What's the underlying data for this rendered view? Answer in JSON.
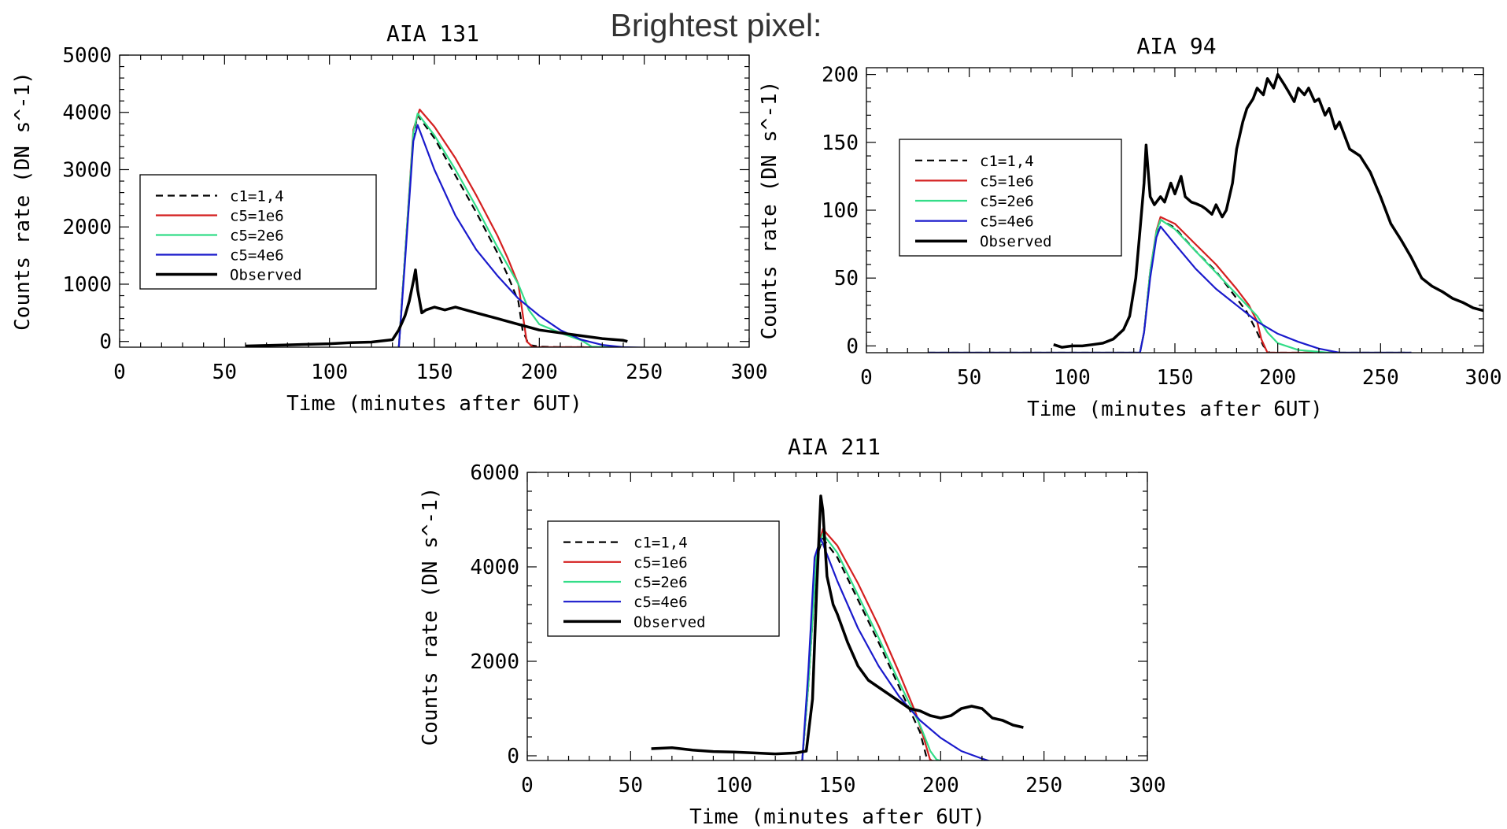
{
  "heading": "Brightest pixel:",
  "chart_data": [
    {
      "type": "line",
      "title": "AIA 131",
      "xlabel": "Time (minutes after 6UT)",
      "ylabel": "Counts rate (DN s^-1)",
      "xlim": [
        0,
        300
      ],
      "ylim": [
        -100,
        5000
      ],
      "xticks": [
        "0",
        "50",
        "100",
        "150",
        "200",
        "250",
        "300"
      ],
      "yticks": [
        "0",
        "1000",
        "2000",
        "3000",
        "4000",
        "5000"
      ],
      "legend": {
        "placement": "center-left"
      },
      "series": [
        {
          "name": "c1=1,4",
          "color": "#000000",
          "dash": true,
          "x": [
            30,
            133,
            136,
            140,
            142,
            150,
            160,
            170,
            180,
            185,
            190,
            192,
            195,
            200,
            210,
            220,
            230,
            240,
            265
          ],
          "y": [
            -120,
            -120,
            1500,
            3600,
            3950,
            3550,
            2900,
            2250,
            1550,
            1150,
            700,
            200,
            -60,
            -90,
            -100,
            -100,
            -100,
            -110,
            -120
          ]
        },
        {
          "name": "c5=1e6",
          "color": "#d42020",
          "dash": false,
          "x": [
            30,
            133,
            136,
            140,
            143,
            150,
            160,
            170,
            180,
            185,
            190,
            192,
            194,
            197,
            200,
            220,
            240,
            265
          ],
          "y": [
            -120,
            -120,
            1500,
            3700,
            4050,
            3750,
            3200,
            2550,
            1850,
            1450,
            1000,
            500,
            0,
            -100,
            -100,
            -100,
            -110,
            -120
          ]
        },
        {
          "name": "c5=2e6",
          "color": "#33dd88",
          "dash": false,
          "x": [
            30,
            133,
            136,
            140,
            142,
            150,
            160,
            170,
            180,
            190,
            195,
            200,
            210,
            220,
            225,
            240,
            265
          ],
          "y": [
            -120,
            -120,
            1500,
            3650,
            3980,
            3600,
            3000,
            2350,
            1650,
            1000,
            550,
            300,
            150,
            20,
            -90,
            -110,
            -120
          ]
        },
        {
          "name": "c5=4e6",
          "color": "#1a1acc",
          "dash": false,
          "x": [
            30,
            133,
            136,
            140,
            142,
            150,
            160,
            170,
            180,
            190,
            200,
            210,
            220,
            230,
            240,
            265
          ],
          "y": [
            -120,
            -120,
            1400,
            3500,
            3780,
            3000,
            2200,
            1600,
            1150,
            750,
            450,
            200,
            30,
            -60,
            -100,
            -120
          ]
        },
        {
          "name": "Observed",
          "color": "#000000",
          "dash": false,
          "x": [
            60,
            80,
            100,
            110,
            120,
            130,
            133,
            136,
            138,
            140,
            141,
            142,
            144,
            146,
            150,
            155,
            160,
            170,
            180,
            190,
            200,
            210,
            220,
            230,
            240,
            242
          ],
          "y": [
            -80,
            -60,
            -40,
            -20,
            -10,
            30,
            200,
            450,
            700,
            1050,
            1250,
            900,
            500,
            550,
            600,
            550,
            600,
            500,
            400,
            300,
            200,
            150,
            100,
            50,
            20,
            0
          ]
        }
      ]
    },
    {
      "type": "line",
      "title": "AIA 94",
      "xlabel": "Time (minutes after 6UT)",
      "ylabel": "Counts rate (DN s^-1)",
      "xlim": [
        0,
        300
      ],
      "ylim": [
        -5,
        205
      ],
      "xticks": [
        "0",
        "50",
        "100",
        "150",
        "200",
        "250",
        "300"
      ],
      "yticks": [
        "0",
        "50",
        "100",
        "150",
        "200"
      ],
      "legend": {
        "placement": "top-left"
      },
      "series": [
        {
          "name": "c1=1,4",
          "color": "#000000",
          "dash": true,
          "x": [
            30,
            133,
            135,
            138,
            141,
            143,
            150,
            160,
            170,
            180,
            185,
            190,
            193,
            196,
            200,
            220,
            240,
            265
          ],
          "y": [
            -5,
            -5,
            10,
            55,
            82,
            93,
            87,
            70,
            55,
            35,
            25,
            10,
            0,
            -5,
            -5,
            -5,
            -5,
            -5
          ]
        },
        {
          "name": "c5=1e6",
          "color": "#d42020",
          "dash": false,
          "x": [
            30,
            133,
            135,
            138,
            141,
            143,
            150,
            160,
            170,
            180,
            186,
            190,
            192,
            195,
            200,
            220,
            240,
            265
          ],
          "y": [
            -5,
            -5,
            10,
            55,
            85,
            95,
            90,
            75,
            60,
            42,
            30,
            18,
            5,
            -5,
            -5,
            -5,
            -5,
            -5
          ]
        },
        {
          "name": "c5=2e6",
          "color": "#33dd88",
          "dash": false,
          "x": [
            30,
            133,
            135,
            138,
            141,
            143,
            150,
            160,
            170,
            180,
            190,
            195,
            200,
            210,
            225,
            240,
            265
          ],
          "y": [
            -5,
            -5,
            10,
            55,
            84,
            93,
            86,
            70,
            54,
            38,
            22,
            10,
            2,
            -3,
            -5,
            -5,
            -5
          ]
        },
        {
          "name": "c5=4e6",
          "color": "#1a1acc",
          "dash": false,
          "x": [
            30,
            133,
            135,
            138,
            141,
            143,
            150,
            160,
            170,
            180,
            190,
            200,
            210,
            220,
            230,
            265
          ],
          "y": [
            -5,
            -5,
            10,
            50,
            80,
            88,
            75,
            57,
            42,
            30,
            18,
            9,
            3,
            -2,
            -5,
            -5
          ]
        },
        {
          "name": "Observed",
          "color": "#000000",
          "dash": false,
          "x": [
            91,
            95,
            100,
            105,
            110,
            115,
            120,
            125,
            128,
            131,
            133,
            135,
            136,
            138,
            140,
            143,
            145,
            148,
            150,
            153,
            155,
            158,
            160,
            163,
            165,
            168,
            170,
            173,
            175,
            178,
            180,
            183,
            185,
            188,
            190,
            193,
            195,
            198,
            200,
            203,
            205,
            208,
            210,
            213,
            215,
            218,
            220,
            223,
            225,
            228,
            230,
            235,
            240,
            245,
            250,
            255,
            260,
            265,
            270,
            275,
            280,
            285,
            290,
            295,
            300
          ],
          "y": [
            1,
            -1,
            0,
            0,
            1,
            2,
            5,
            12,
            22,
            50,
            85,
            120,
            148,
            110,
            104,
            110,
            106,
            120,
            112,
            125,
            110,
            106,
            105,
            103,
            101,
            97,
            104,
            95,
            100,
            120,
            145,
            165,
            175,
            182,
            190,
            185,
            197,
            190,
            200,
            193,
            188,
            180,
            190,
            185,
            190,
            180,
            182,
            170,
            175,
            160,
            165,
            145,
            140,
            128,
            110,
            90,
            78,
            65,
            50,
            44,
            40,
            35,
            32,
            28,
            26
          ]
        }
      ]
    },
    {
      "type": "line",
      "title": "AIA 211",
      "xlabel": "Time (minutes after 6UT)",
      "ylabel": "Counts rate (DN s^-1)",
      "xlim": [
        0,
        300
      ],
      "ylim": [
        -100,
        6000
      ],
      "xticks": [
        "0",
        "50",
        "100",
        "150",
        "200",
        "250",
        "300"
      ],
      "yticks": [
        "0",
        "2000",
        "4000",
        "6000"
      ],
      "legend": {
        "placement": "top-left"
      },
      "series": [
        {
          "name": "c1=1,4",
          "color": "#000000",
          "dash": true,
          "x": [
            30,
            133,
            136,
            140,
            143,
            150,
            160,
            170,
            180,
            190,
            193,
            196,
            200,
            220,
            240,
            265
          ],
          "y": [
            -130,
            -130,
            1500,
            4200,
            4600,
            4200,
            3300,
            2400,
            1450,
            500,
            0,
            -120,
            -130,
            -130,
            -130,
            -130
          ]
        },
        {
          "name": "c5=1e6",
          "color": "#d42020",
          "dash": false,
          "x": [
            30,
            133,
            136,
            140,
            143,
            150,
            160,
            170,
            180,
            188,
            192,
            195,
            200,
            220,
            240,
            265
          ],
          "y": [
            -130,
            -130,
            1500,
            4300,
            4800,
            4450,
            3650,
            2750,
            1750,
            900,
            350,
            -100,
            -130,
            -130,
            -130,
            -130
          ]
        },
        {
          "name": "c5=2e6",
          "color": "#33dd88",
          "dash": false,
          "x": [
            30,
            133,
            136,
            140,
            143,
            150,
            160,
            170,
            180,
            190,
            195,
            198,
            202,
            220,
            240,
            265
          ],
          "y": [
            -130,
            -130,
            1500,
            4250,
            4700,
            4300,
            3400,
            2500,
            1550,
            650,
            100,
            -80,
            -130,
            -130,
            -130,
            -130
          ]
        },
        {
          "name": "c5=4e6",
          "color": "#1a1acc",
          "dash": false,
          "x": [
            30,
            133,
            136,
            139,
            142,
            150,
            160,
            170,
            180,
            190,
            200,
            210,
            220,
            225,
            265
          ],
          "y": [
            -130,
            -130,
            1800,
            4200,
            4600,
            3700,
            2700,
            1900,
            1250,
            750,
            380,
            100,
            -60,
            -130,
            -130
          ]
        },
        {
          "name": "Observed",
          "color": "#000000",
          "dash": false,
          "x": [
            60,
            70,
            80,
            90,
            100,
            110,
            120,
            130,
            135,
            138,
            140,
            142,
            143,
            145,
            148,
            150,
            155,
            160,
            165,
            170,
            175,
            180,
            185,
            190,
            195,
            200,
            205,
            210,
            215,
            220,
            225,
            230,
            235,
            240
          ],
          "y": [
            150,
            170,
            120,
            90,
            80,
            60,
            40,
            60,
            100,
            1200,
            3500,
            5500,
            5200,
            3800,
            3200,
            3000,
            2400,
            1900,
            1600,
            1450,
            1300,
            1150,
            1000,
            950,
            850,
            800,
            850,
            1000,
            1050,
            1000,
            800,
            750,
            650,
            600
          ]
        }
      ]
    }
  ]
}
